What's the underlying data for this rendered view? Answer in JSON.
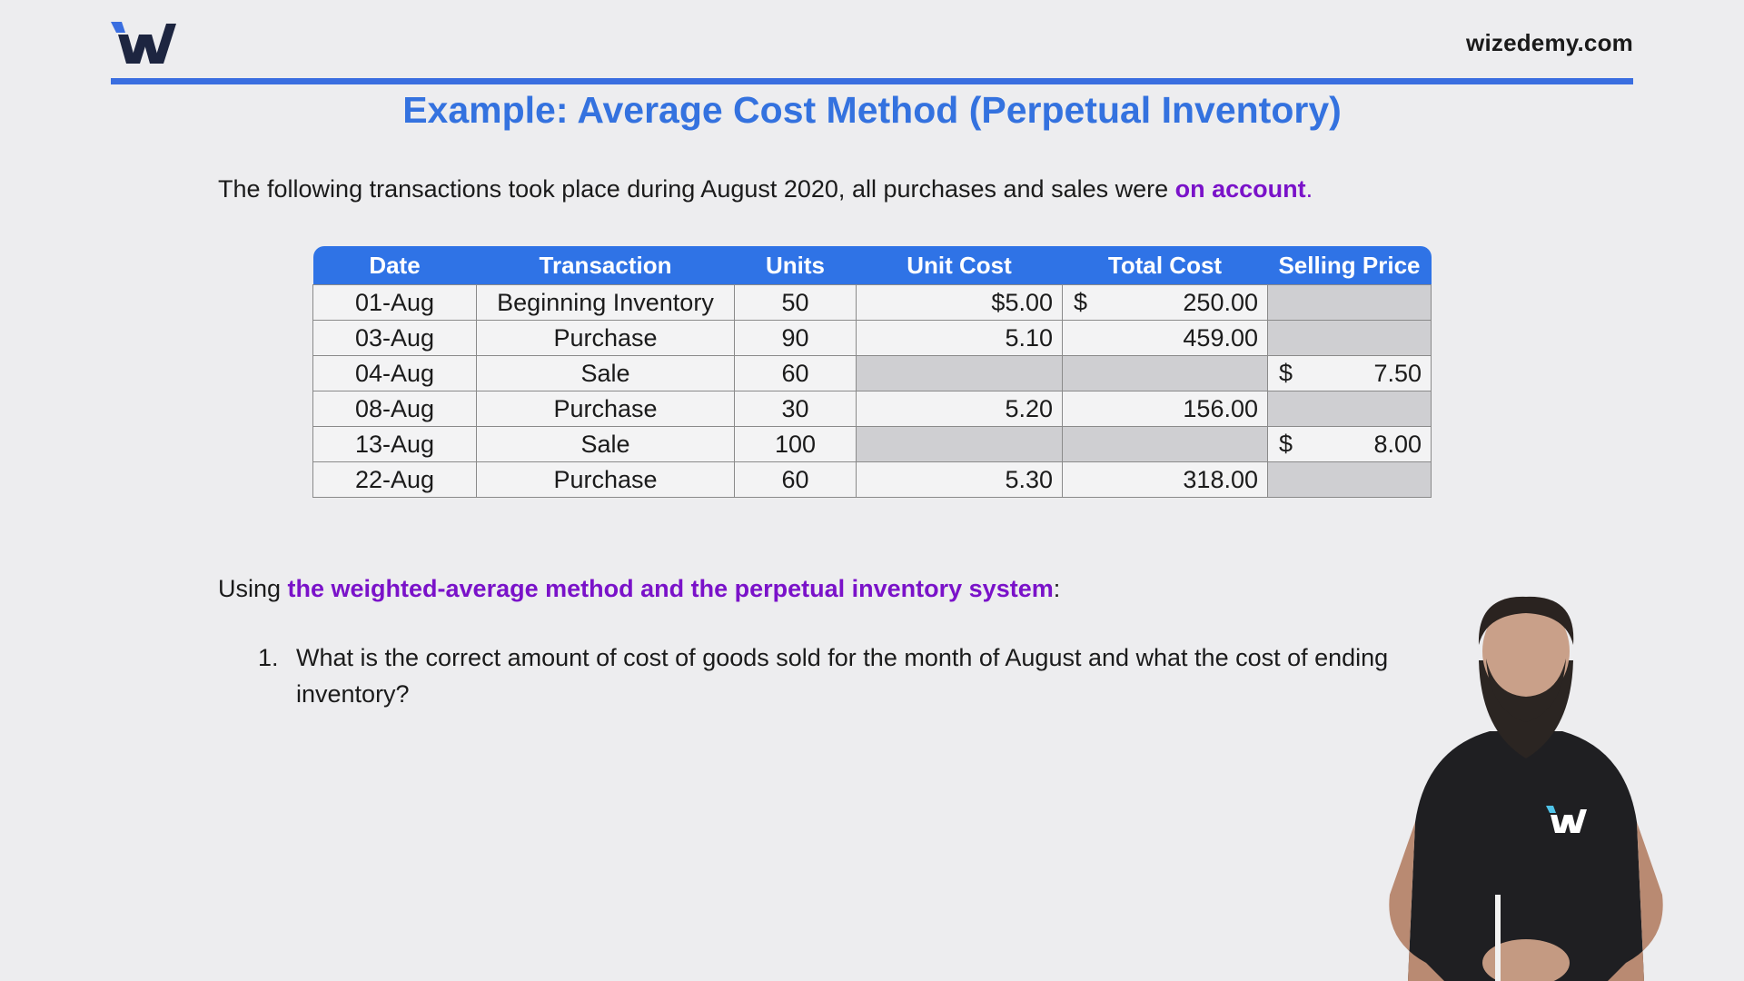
{
  "header": {
    "site": "wizedemy.com",
    "brand_color": "#3a6ee0"
  },
  "title": "Example: Average Cost Method (Perpetual Inventory)",
  "intro": {
    "before": "The following transactions took place during August 2020, all purchases and sales were ",
    "highlight": "on account",
    "after": "."
  },
  "table": {
    "headers": [
      "Date",
      "Transaction",
      "Units",
      "Unit Cost",
      "Total Cost",
      "Selling Price"
    ],
    "rows": [
      {
        "date": "01-Aug",
        "transaction": "Beginning Inventory",
        "units": "50",
        "unit_cost": "$5.00",
        "total_cur": "$",
        "total": "250.00",
        "price_cur": "",
        "price": ""
      },
      {
        "date": "03-Aug",
        "transaction": "Purchase",
        "units": "90",
        "unit_cost": "5.10",
        "total_cur": "",
        "total": "459.00",
        "price_cur": "",
        "price": ""
      },
      {
        "date": "04-Aug",
        "transaction": "Sale",
        "units": "60",
        "unit_cost": "",
        "total_cur": "",
        "total": "",
        "price_cur": "$",
        "price": "7.50"
      },
      {
        "date": "08-Aug",
        "transaction": "Purchase",
        "units": "30",
        "unit_cost": "5.20",
        "total_cur": "",
        "total": "156.00",
        "price_cur": "",
        "price": ""
      },
      {
        "date": "13-Aug",
        "transaction": "Sale",
        "units": "100",
        "unit_cost": "",
        "total_cur": "",
        "total": "",
        "price_cur": "$",
        "price": "8.00"
      },
      {
        "date": "22-Aug",
        "transaction": "Purchase",
        "units": "60",
        "unit_cost": "5.30",
        "total_cur": "",
        "total": "318.00",
        "price_cur": "",
        "price": ""
      }
    ]
  },
  "prompt": {
    "before": "Using ",
    "highlight": "the weighted-average method and the perpetual inventory system",
    "after": ":"
  },
  "question": {
    "number": "1.",
    "text": "What is the correct amount of cost of goods sold for the month of August  and what the cost of ending inventory?"
  },
  "colors": {
    "title": "#3472df",
    "highlight": "#7a12c9",
    "header_bg": "#2f73e6",
    "shade": "#cfcfd2"
  }
}
